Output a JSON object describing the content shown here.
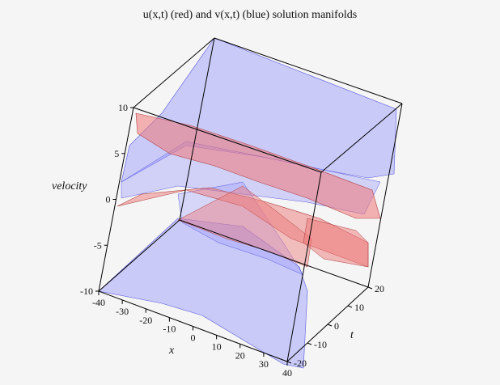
{
  "chart_data": {
    "type": "surface3d",
    "title": "u(x,t) (red) and v(x,t) (blue) solution manifolds",
    "xlabel": "x",
    "ylabel": "t",
    "zlabel": "velocity",
    "xlim": [
      -40,
      40
    ],
    "ylim": [
      -20,
      20
    ],
    "zlim": [
      -10,
      10
    ],
    "x_ticks": [
      "-40",
      "-30",
      "-20",
      "-10",
      "0",
      "10",
      "20",
      "30",
      "40"
    ],
    "y_ticks": [
      "-20",
      "-10",
      "0",
      "10",
      "20"
    ],
    "z_ticks": [
      "-10",
      "-5",
      "0",
      "5",
      "10"
    ],
    "series": [
      {
        "color": "#ee7777",
        "grid_color": "#ffdddd"
      },
      {
        "color": "#8f8fff",
        "grid_color": "#e8e8ff"
      }
    ]
  }
}
